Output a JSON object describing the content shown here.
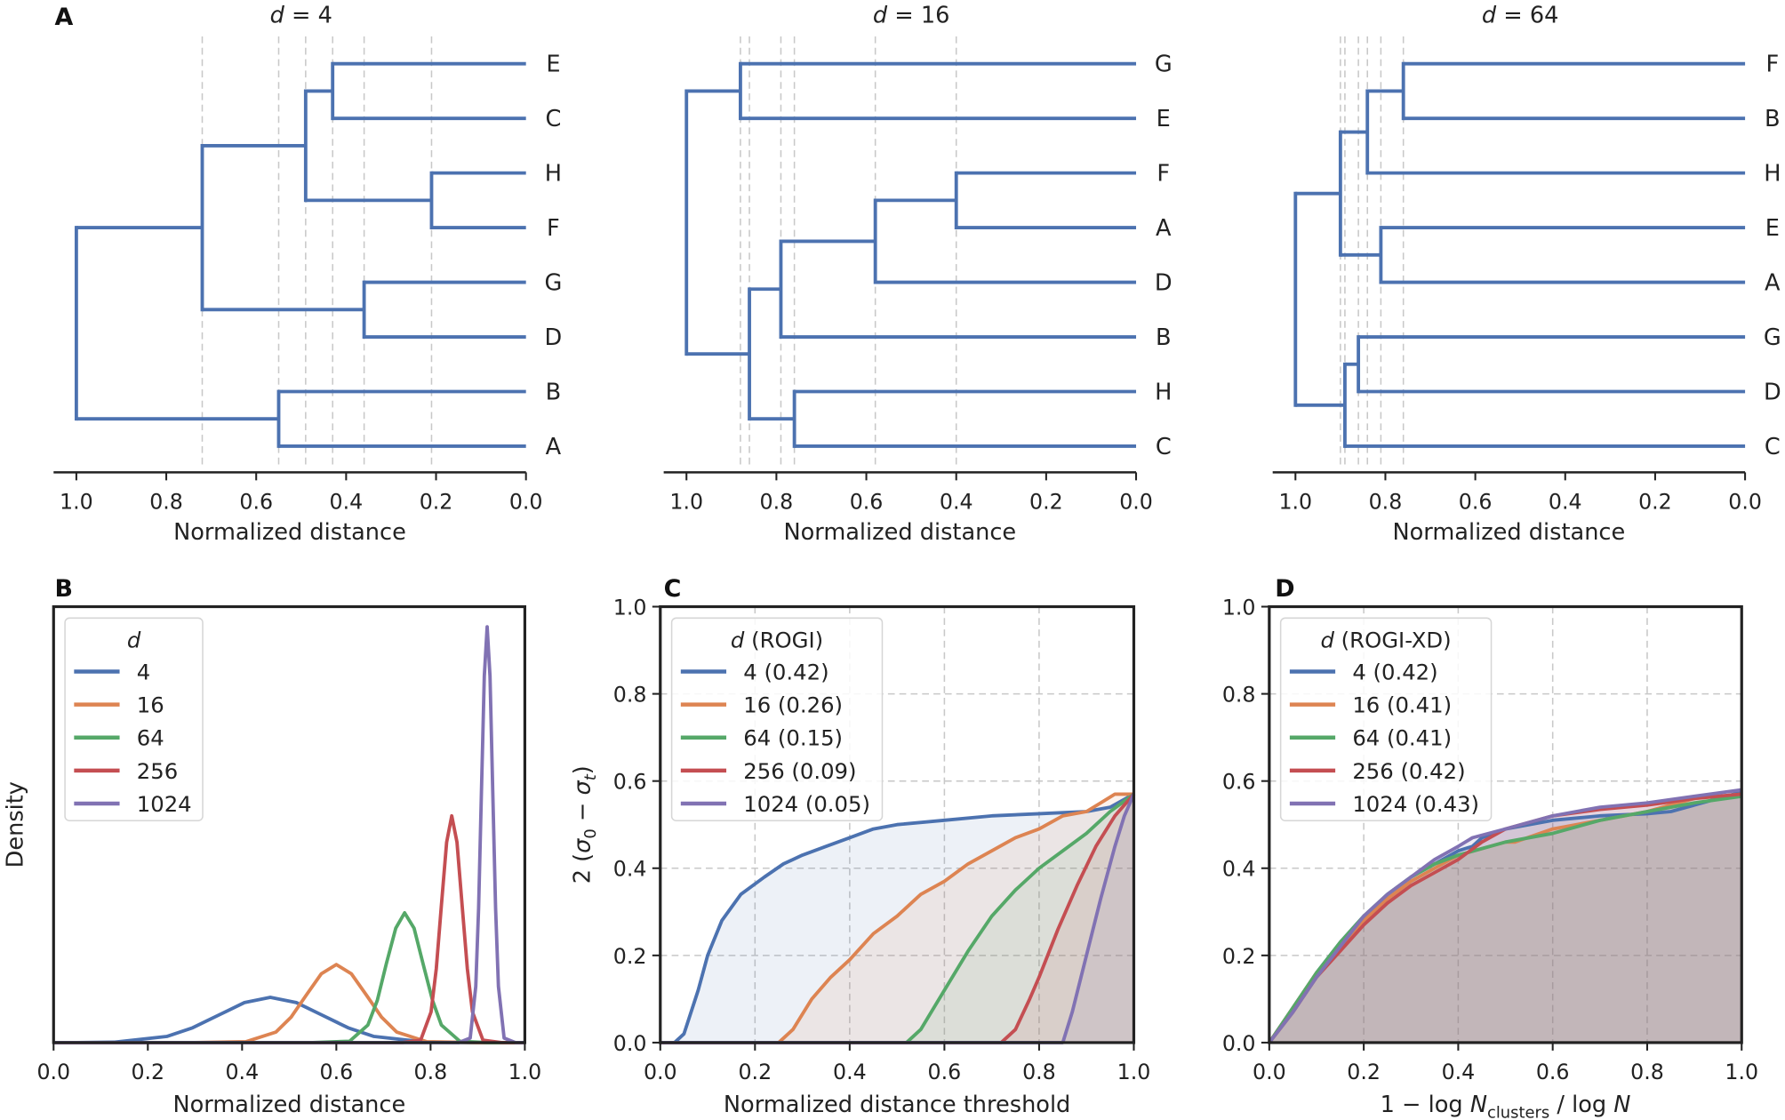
{
  "figure": {
    "panel_labels": [
      "A",
      "B",
      "C",
      "D"
    ]
  },
  "colors": {
    "4": "#4c72b0",
    "16": "#dd8452",
    "64": "#55a868",
    "256": "#c44e52",
    "1024": "#8172b3",
    "dendrogram": "#4c72b0"
  },
  "chart_data": [
    {
      "type": "dendrogram",
      "panel": "A",
      "title_var": "d",
      "title_rest": " = 4",
      "xlabel": "Normalized distance",
      "xlim": [
        1.0,
        0.0
      ],
      "ticks": [
        "1.0",
        "0.8",
        "0.6",
        "0.4",
        "0.2",
        "0.0"
      ],
      "leaves": [
        "E",
        "C",
        "H",
        "F",
        "G",
        "D",
        "B",
        "A"
      ],
      "merges": [
        {
          "children": [
            "E",
            "C"
          ],
          "height": 0.43
        },
        {
          "children": [
            "H",
            "F"
          ],
          "height": 0.21
        },
        {
          "children": [
            "#0",
            "#1"
          ],
          "height": 0.49
        },
        {
          "children": [
            "G",
            "D"
          ],
          "height": 0.36
        },
        {
          "children": [
            "#2",
            "#3"
          ],
          "height": 0.72
        },
        {
          "children": [
            "B",
            "A"
          ],
          "height": 0.55
        },
        {
          "children": [
            "#4",
            "#5"
          ],
          "height": 1.0
        }
      ]
    },
    {
      "type": "dendrogram",
      "panel": "A",
      "title_var": "d",
      "title_rest": " = 16",
      "xlabel": "Normalized distance",
      "xlim": [
        1.0,
        0.0
      ],
      "ticks": [
        "1.0",
        "0.8",
        "0.6",
        "0.4",
        "0.2",
        "0.0"
      ],
      "leaves": [
        "G",
        "E",
        "F",
        "A",
        "D",
        "B",
        "H",
        "C"
      ],
      "merges": [
        {
          "children": [
            "G",
            "E"
          ],
          "height": 0.88
        },
        {
          "children": [
            "F",
            "A"
          ],
          "height": 0.4
        },
        {
          "children": [
            "#1",
            "D"
          ],
          "height": 0.58
        },
        {
          "children": [
            "#2",
            "B"
          ],
          "height": 0.79
        },
        {
          "children": [
            "H",
            "C"
          ],
          "height": 0.76
        },
        {
          "children": [
            "#3",
            "#4"
          ],
          "height": 0.86
        },
        {
          "children": [
            "#0",
            "#5"
          ],
          "height": 1.0
        }
      ]
    },
    {
      "type": "dendrogram",
      "panel": "A",
      "title_var": "d",
      "title_rest": " = 64",
      "xlabel": "Normalized distance",
      "xlim": [
        1.0,
        0.0
      ],
      "ticks": [
        "1.0",
        "0.8",
        "0.6",
        "0.4",
        "0.2",
        "0.0"
      ],
      "leaves": [
        "F",
        "B",
        "H",
        "E",
        "A",
        "G",
        "D",
        "C"
      ],
      "merges": [
        {
          "children": [
            "F",
            "B"
          ],
          "height": 0.76
        },
        {
          "children": [
            "#0",
            "H"
          ],
          "height": 0.84
        },
        {
          "children": [
            "E",
            "A"
          ],
          "height": 0.81
        },
        {
          "children": [
            "#1",
            "#2"
          ],
          "height": 0.9
        },
        {
          "children": [
            "G",
            "D"
          ],
          "height": 0.86
        },
        {
          "children": [
            "#4",
            "C"
          ],
          "height": 0.89
        },
        {
          "children": [
            "#3",
            "#5"
          ],
          "height": 1.0
        }
      ]
    },
    {
      "type": "line",
      "panel": "B",
      "xlabel": "Normalized distance",
      "ylabel": "Density",
      "xlim": [
        0,
        1
      ],
      "ylim": [
        0,
        34.6
      ],
      "grid": false,
      "xticks": [
        "0.0",
        "0.2",
        "0.4",
        "0.6",
        "0.8",
        "1.0"
      ],
      "legend": {
        "title_var": "d",
        "title_rest": "",
        "placement": "upper-left",
        "labels": [
          "4",
          "16",
          "64",
          "256",
          "1024"
        ]
      },
      "series": [
        {
          "name": "4",
          "x": [
            0,
            0.05,
            0.13,
            0.24,
            0.295,
            0.35,
            0.405,
            0.46,
            0.515,
            0.57,
            0.625,
            0.68,
            0.79,
            0.9,
            1.0
          ],
          "y": [
            0,
            0,
            0.04,
            0.49,
            1.17,
            2.18,
            3.18,
            3.6,
            3.18,
            2.18,
            1.17,
            0.49,
            0.04,
            0,
            0
          ]
        },
        {
          "name": "16",
          "x": [
            0,
            0.3,
            0.408,
            0.472,
            0.504,
            0.536,
            0.568,
            0.6,
            0.632,
            0.664,
            0.696,
            0.728,
            0.792,
            0.9,
            1.0
          ],
          "y": [
            0,
            0,
            0.07,
            0.84,
            2.02,
            3.76,
            5.47,
            6.2,
            5.47,
            3.76,
            2.02,
            0.84,
            0.07,
            0,
            0
          ]
        },
        {
          "name": "64",
          "x": [
            0,
            0.55,
            0.628,
            0.667,
            0.687,
            0.706,
            0.726,
            0.745,
            0.765,
            0.784,
            0.804,
            0.823,
            0.862,
            0.92,
            1.0
          ],
          "y": [
            0,
            0,
            0.11,
            1.39,
            3.35,
            6.25,
            9.08,
            10.3,
            9.08,
            6.25,
            3.35,
            1.39,
            0.11,
            0,
            0
          ]
        },
        {
          "name": "256",
          "x": [
            0,
            0.74,
            0.779,
            0.801,
            0.812,
            0.823,
            0.834,
            0.845,
            0.856,
            0.867,
            0.878,
            0.889,
            0.911,
            0.95,
            1.0
          ],
          "y": [
            0,
            0,
            0.2,
            2.43,
            5.85,
            10.9,
            15.9,
            18,
            15.9,
            10.9,
            5.85,
            2.43,
            0.2,
            0,
            0
          ]
        },
        {
          "name": "1024",
          "x": [
            0,
            0.86,
            0.884,
            0.896,
            0.902,
            0.908,
            0.914,
            0.92,
            0.926,
            0.932,
            0.938,
            0.944,
            0.956,
            0.98,
            1.0
          ],
          "y": [
            0,
            0,
            0.36,
            4.46,
            10.7,
            20,
            29.1,
            33,
            29.1,
            20,
            10.7,
            4.46,
            0.36,
            0,
            0
          ]
        }
      ]
    },
    {
      "type": "area",
      "panel": "C",
      "xlabel": "Normalized distance threshold",
      "ylabel_pre": "2 (",
      "ylabel_s0": "σ",
      "ylabel_sub0": "0",
      "ylabel_mid": " − ",
      "ylabel_st": "σ",
      "ylabel_subt": "t",
      "ylabel_post": ")",
      "xlim": [
        0,
        1
      ],
      "ylim": [
        0,
        1
      ],
      "grid": true,
      "xticks": [
        "0.0",
        "0.2",
        "0.4",
        "0.6",
        "0.8",
        "1.0"
      ],
      "yticks": [
        "0.0",
        "0.2",
        "0.4",
        "0.6",
        "0.8",
        "1.0"
      ],
      "legend": {
        "title_var": "d",
        "title_rest": " (ROGI)",
        "placement": "upper-left",
        "labels": [
          "4 (0.42)",
          "16 (0.26)",
          "64 (0.15)",
          "256 (0.09)",
          "1024 (0.05)"
        ]
      },
      "series": [
        {
          "name": "4",
          "x": [
            0,
            0.03,
            0.05,
            0.08,
            0.1,
            0.13,
            0.17,
            0.22,
            0.26,
            0.3,
            0.35,
            0.4,
            0.45,
            0.5,
            0.6,
            0.7,
            0.8,
            0.9,
            0.95,
            1.0
          ],
          "y": [
            0,
            0,
            0.02,
            0.12,
            0.2,
            0.28,
            0.34,
            0.38,
            0.41,
            0.43,
            0.45,
            0.47,
            0.49,
            0.5,
            0.51,
            0.52,
            0.525,
            0.53,
            0.54,
            0.57
          ]
        },
        {
          "name": "16",
          "x": [
            0,
            0.25,
            0.28,
            0.32,
            0.36,
            0.4,
            0.45,
            0.5,
            0.55,
            0.6,
            0.65,
            0.7,
            0.75,
            0.8,
            0.85,
            0.9,
            0.93,
            0.96,
            1.0
          ],
          "y": [
            0,
            0,
            0.03,
            0.1,
            0.15,
            0.19,
            0.25,
            0.29,
            0.34,
            0.37,
            0.41,
            0.44,
            0.47,
            0.49,
            0.52,
            0.53,
            0.55,
            0.57,
            0.57
          ]
        },
        {
          "name": "64",
          "x": [
            0,
            0.52,
            0.55,
            0.6,
            0.65,
            0.7,
            0.75,
            0.8,
            0.85,
            0.9,
            0.95,
            1.0
          ],
          "y": [
            0,
            0,
            0.03,
            0.12,
            0.21,
            0.29,
            0.35,
            0.4,
            0.44,
            0.48,
            0.53,
            0.57
          ]
        },
        {
          "name": "256",
          "x": [
            0,
            0.72,
            0.75,
            0.78,
            0.8,
            0.84,
            0.88,
            0.92,
            0.96,
            1.0
          ],
          "y": [
            0,
            0,
            0.03,
            0.1,
            0.15,
            0.26,
            0.36,
            0.45,
            0.52,
            0.57
          ]
        },
        {
          "name": "1024",
          "x": [
            0,
            0.85,
            0.87,
            0.9,
            0.93,
            0.96,
            0.98,
            1.0
          ],
          "y": [
            0,
            0,
            0.07,
            0.2,
            0.33,
            0.45,
            0.52,
            0.57
          ]
        }
      ]
    },
    {
      "type": "area",
      "panel": "D",
      "xlabel_pre": "1 − log ",
      "xlabel_N": "N",
      "xlabel_sub": "clusters",
      "xlabel_mid": " / log ",
      "xlabel_N2": "N",
      "xlim": [
        0,
        1
      ],
      "ylim": [
        0,
        1
      ],
      "grid": true,
      "xticks": [
        "0.0",
        "0.2",
        "0.4",
        "0.6",
        "0.8",
        "1.0"
      ],
      "yticks": [
        "0.0",
        "0.2",
        "0.4",
        "0.6",
        "0.8",
        "1.0"
      ],
      "legend": {
        "title_var": "d",
        "title_rest": " (ROGI-XD)",
        "placement": "upper-left",
        "labels": [
          "4 (0.42)",
          "16 (0.41)",
          "64 (0.41)",
          "256 (0.42)",
          "1024 (0.43)"
        ]
      },
      "series": [
        {
          "name": "4",
          "x": [
            0,
            0.05,
            0.1,
            0.15,
            0.2,
            0.25,
            0.3,
            0.35,
            0.4,
            0.43,
            0.45,
            0.5,
            0.6,
            0.7,
            0.8,
            0.85,
            0.9,
            1.0
          ],
          "y": [
            0,
            0.08,
            0.16,
            0.23,
            0.29,
            0.34,
            0.38,
            0.41,
            0.44,
            0.45,
            0.47,
            0.49,
            0.51,
            0.52,
            0.525,
            0.53,
            0.545,
            0.575
          ]
        },
        {
          "name": "16",
          "x": [
            0,
            0.05,
            0.1,
            0.15,
            0.2,
            0.25,
            0.3,
            0.35,
            0.4,
            0.5,
            0.52,
            0.6,
            0.7,
            0.8,
            0.9,
            1.0
          ],
          "y": [
            0,
            0.08,
            0.16,
            0.22,
            0.28,
            0.33,
            0.37,
            0.4,
            0.43,
            0.46,
            0.46,
            0.49,
            0.51,
            0.53,
            0.56,
            0.57
          ]
        },
        {
          "name": "64",
          "x": [
            0,
            0.05,
            0.1,
            0.15,
            0.2,
            0.25,
            0.3,
            0.35,
            0.4,
            0.5,
            0.6,
            0.7,
            0.8,
            0.9,
            1.0
          ],
          "y": [
            0,
            0.08,
            0.16,
            0.23,
            0.29,
            0.34,
            0.38,
            0.41,
            0.43,
            0.46,
            0.48,
            0.51,
            0.53,
            0.55,
            0.565
          ]
        },
        {
          "name": "256",
          "x": [
            0,
            0.05,
            0.1,
            0.15,
            0.2,
            0.25,
            0.3,
            0.35,
            0.4,
            0.45,
            0.5,
            0.6,
            0.7,
            0.8,
            0.9,
            1.0
          ],
          "y": [
            0,
            0.07,
            0.15,
            0.21,
            0.27,
            0.32,
            0.36,
            0.39,
            0.42,
            0.46,
            0.49,
            0.52,
            0.535,
            0.545,
            0.56,
            0.57
          ]
        },
        {
          "name": "1024",
          "x": [
            0,
            0.05,
            0.1,
            0.15,
            0.2,
            0.25,
            0.3,
            0.35,
            0.4,
            0.43,
            0.5,
            0.6,
            0.7,
            0.8,
            0.9,
            1.0
          ],
          "y": [
            0,
            0.07,
            0.15,
            0.22,
            0.29,
            0.34,
            0.38,
            0.42,
            0.45,
            0.47,
            0.49,
            0.52,
            0.54,
            0.55,
            0.565,
            0.58
          ]
        }
      ]
    }
  ]
}
